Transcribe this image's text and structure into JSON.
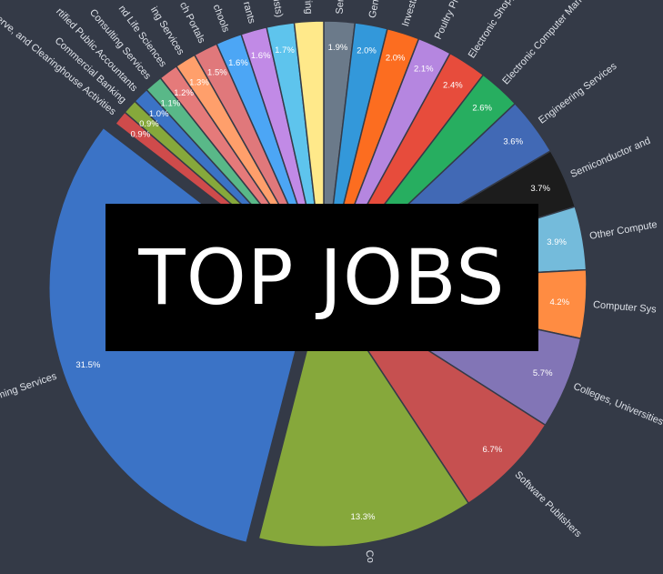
{
  "banner": {
    "text": "TOP JOBS"
  },
  "chart_data": {
    "type": "pie",
    "title": "",
    "start_angle_deg": 90,
    "slices": [
      {
        "label": "Semi",
        "value": 1.9,
        "percent_label": "1.9%",
        "color": "#6b7a8a"
      },
      {
        "label": "Gene",
        "value": 2.0,
        "percent_label": "2.0%",
        "color": "#3398da"
      },
      {
        "label": "Investm",
        "value": 2.0,
        "percent_label": "2.0%",
        "color": "#fc6d20"
      },
      {
        "label": "Poultry Pro",
        "value": 2.1,
        "percent_label": "2.1%",
        "color": "#b586e0"
      },
      {
        "label": "Electronic Shopp",
        "value": 2.4,
        "percent_label": "2.4%",
        "color": "#e74c3c"
      },
      {
        "label": "Electronic Computer Manufa",
        "value": 2.6,
        "percent_label": "2.6%",
        "color": "#27ae60"
      },
      {
        "label": "Engineering Services",
        "value": 3.6,
        "percent_label": "3.6%",
        "color": "#4169b5"
      },
      {
        "label": "Semiconductor and",
        "value": 3.7,
        "percent_label": "3.7%",
        "color": "#1c1c1c"
      },
      {
        "label": "Other Compute",
        "value": 3.9,
        "percent_label": "3.9%",
        "color": "#74bbdb"
      },
      {
        "label": "Computer Sys",
        "value": 4.2,
        "percent_label": "4.2%",
        "color": "#ff8c42"
      },
      {
        "label": "Colleges, Universities",
        "value": 5.7,
        "percent_label": "5.7%",
        "color": "#8275b6"
      },
      {
        "label": "Software Publishers",
        "value": 6.7,
        "percent_label": "6.7%",
        "color": "#c65050"
      },
      {
        "label": "Co",
        "value": 13.3,
        "percent_label": "13.3%",
        "color": "#86a83b"
      },
      {
        "label": "ming Services",
        "value": 31.5,
        "percent_label": "31.5%",
        "color": "#3b73c6",
        "exploded": true
      },
      {
        "label": "serve, and Clearinghouse Activities",
        "value": 0.9,
        "percent_label": "0.9%",
        "color": "#cf4b4b"
      },
      {
        "label": "Commercial Banking",
        "value": 0.9,
        "percent_label": "0.9%",
        "color": "#86a83b"
      },
      {
        "label": "rtified Public Accountants",
        "value": 1.0,
        "percent_label": "1.0%",
        "color": "#3b73c6"
      },
      {
        "label": "Consulting Services",
        "value": 1.1,
        "percent_label": "1.1%",
        "color": "#59b888"
      },
      {
        "label": "nd Life Sciences",
        "value": 1.2,
        "percent_label": "1.2%",
        "color": "#e57a7a"
      },
      {
        "label": "ing Services",
        "value": 1.3,
        "percent_label": "1.3%",
        "color": "#ff9f6b"
      },
      {
        "label": "ch Portals",
        "value": 1.5,
        "percent_label": "1.5%",
        "color": "#e0787b"
      },
      {
        "label": "chools",
        "value": 1.6,
        "percent_label": "1.6%",
        "color": "#4ca6f5"
      },
      {
        "label": "rants",
        "value": 1.6,
        "percent_label": "1.6%",
        "color": "#c18ae6"
      },
      {
        "label": "ists)",
        "value": 1.7,
        "percent_label": "1.7%",
        "color": "#5ec4ed"
      },
      {
        "label": "ring",
        "value": 1.8,
        "percent_label": "",
        "color": "#ffe98a"
      }
    ]
  }
}
